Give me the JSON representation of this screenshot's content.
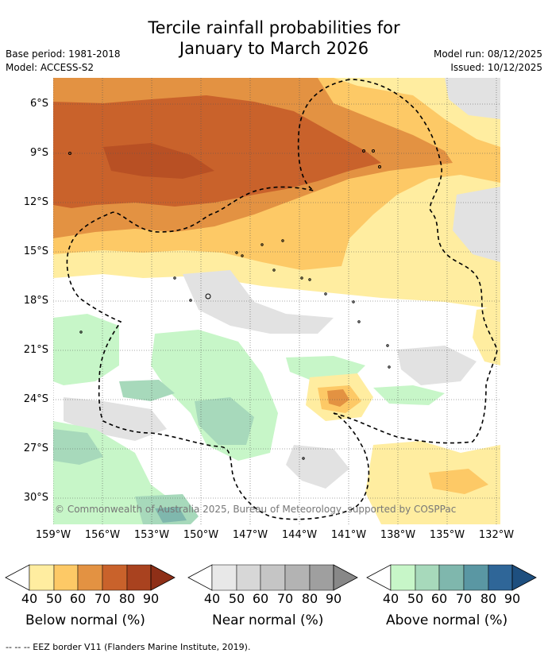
{
  "title_line1": "Tercile rainfall probabilities for",
  "title_line2": "January to March 2026",
  "base_period": "Base period: 1981-2018",
  "model": "Model: ACCESS-S2",
  "model_run": "Model run: 08/12/2025",
  "issued": "Issued: 10/12/2025",
  "copyright": "© Commonwealth of Australia 2025, Bureau of Meteorology, supported by COSPPac",
  "footnote": "--  --  -- EEZ border V11 (Flanders Marine Institute, 2019).",
  "lat_labels": [
    "6°S",
    "9°S",
    "12°S",
    "15°S",
    "18°S",
    "21°S",
    "24°S",
    "27°S",
    "30°S"
  ],
  "lon_labels": [
    "159°W",
    "156°W",
    "153°W",
    "150°W",
    "147°W",
    "144°W",
    "141°W",
    "138°W",
    "135°W",
    "132°W"
  ],
  "legends": [
    {
      "name": "Below normal (%)",
      "ticks": [
        "40",
        "50",
        "60",
        "70",
        "80",
        "90"
      ],
      "colors": [
        "#ffeda0",
        "#fdc966",
        "#e39242",
        "#c9622b",
        "#a9421f",
        "#8e2f17"
      ]
    },
    {
      "name": "Near normal (%)",
      "ticks": [
        "40",
        "50",
        "60",
        "70",
        "80",
        "90"
      ],
      "colors": [
        "#e8e8e8",
        "#d7d7d7",
        "#c5c5c5",
        "#b3b3b3",
        "#9f9f9f",
        "#888888"
      ]
    },
    {
      "name": "Above normal (%)",
      "ticks": [
        "40",
        "50",
        "60",
        "70",
        "80",
        "90"
      ],
      "colors": [
        "#c7f6c8",
        "#a7d9bb",
        "#7fb7ad",
        "#5a97a3",
        "#2f6698",
        "#1e4f7f"
      ]
    }
  ]
}
